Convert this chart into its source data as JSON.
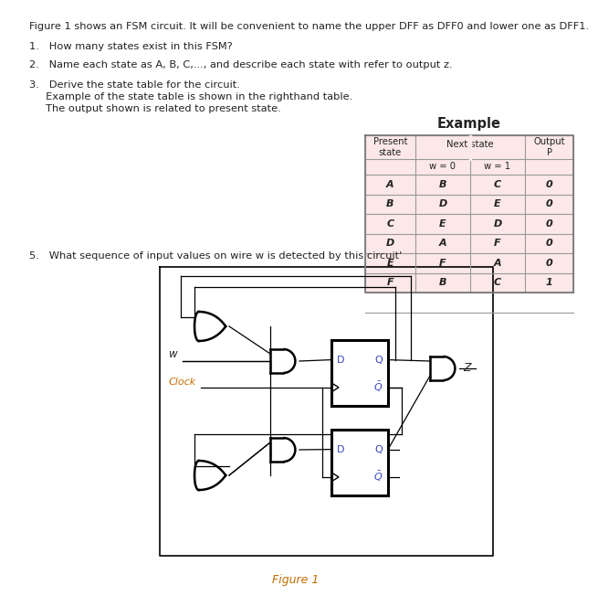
{
  "title_text": "Figure 1 shows an FSM circuit. It will be convenient to name the upper DFF as DFF0 and lower one as DFF1.",
  "q1": "1.   How many states exist in this FSM?",
  "q2": "2.   Name each state as A, B, C,..., and describe each state with refer to output z.",
  "q3_lines": [
    "3.   Derive the state table for the circuit.",
    "     Example of the state table is shown in the righthand table.",
    "     The output shown is related to present state."
  ],
  "q5_text": "5.   What sequence of input values on wire w is detected by this circuit'",
  "figure_caption": "Figure 1",
  "table_title": "Example",
  "table_rows": [
    [
      "A",
      "B",
      "C",
      "0"
    ],
    [
      "B",
      "D",
      "E",
      "0"
    ],
    [
      "C",
      "E",
      "D",
      "0"
    ],
    [
      "D",
      "A",
      "F",
      "0"
    ],
    [
      "E",
      "F",
      "A",
      "0"
    ],
    [
      "F",
      "B",
      "C",
      "1"
    ]
  ],
  "table_bg": "#fce8e8",
  "text_color": "#222222",
  "orange_color": "#c46a00",
  "blue_color": "#3344bb",
  "bg_color": "#ffffff",
  "fs_main": 8.2,
  "fs_table": 7.8,
  "fs_caption": 9.0
}
